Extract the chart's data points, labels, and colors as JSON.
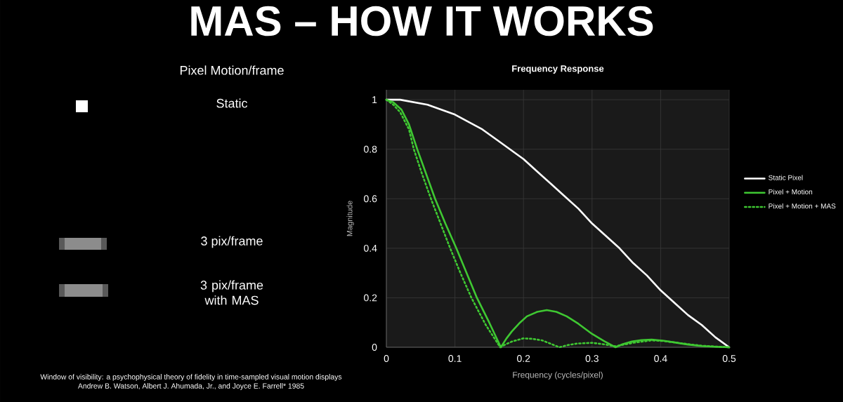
{
  "chart_data": {
    "type": "line",
    "title": "Frequency Response",
    "subtitle": "MAS – HOW IT WORKS",
    "xlabel": "Frequency (cycles/pixel)",
    "ylabel": "Magnitude",
    "xlim": [
      0,
      0.5
    ],
    "ylim": [
      0,
      1.04
    ],
    "xticks": [
      0,
      0.1,
      0.2,
      0.3,
      0.4,
      0.5
    ],
    "yticks": [
      0,
      0.2,
      0.4,
      0.6,
      0.8,
      1
    ],
    "grid": true,
    "legend": "right",
    "marker": "none",
    "annotations": [
      "Pixel Motion/frame",
      "Static",
      "3 pix/frame",
      "3 pix/frame with MAS",
      "Window of visibility: a psychophysical theory of fidelity in time-sampled visual motion displays",
      "Andrew B. Watson, Albert J. Ahumada, Jr., and Joyce E. Farrell* 1985"
    ],
    "series": [
      {
        "name": "Static Pixel",
        "color": "#ffffff",
        "line_style": "solid",
        "x": [
          0,
          0.02,
          0.04,
          0.06,
          0.08,
          0.1,
          0.12,
          0.14,
          0.16,
          0.18,
          0.2,
          0.22,
          0.24,
          0.26,
          0.28,
          0.3,
          0.32,
          0.34,
          0.36,
          0.38,
          0.4,
          0.42,
          0.44,
          0.46,
          0.48,
          0.5
        ],
        "values": [
          1,
          1.0,
          0.99,
          0.98,
          0.96,
          0.94,
          0.91,
          0.88,
          0.84,
          0.8,
          0.76,
          0.71,
          0.66,
          0.61,
          0.56,
          0.5,
          0.45,
          0.4,
          0.34,
          0.29,
          0.23,
          0.18,
          0.13,
          0.09,
          0.04,
          0
        ]
      },
      {
        "name": "Pixel + Motion",
        "color": "#3fc832",
        "line_style": "solid",
        "x": [
          0,
          0.01,
          0.022,
          0.033,
          0.045,
          0.058,
          0.071,
          0.086,
          0.102,
          0.117,
          0.132,
          0.15,
          0.167,
          0.175,
          0.183,
          0.195,
          0.205,
          0.22,
          0.234,
          0.248,
          0.263,
          0.28,
          0.3,
          0.317,
          0.334,
          0.345,
          0.358,
          0.372,
          0.387,
          0.405,
          0.424,
          0.44,
          0.46,
          0.48,
          0.5
        ],
        "values": [
          1,
          0.99,
          0.96,
          0.9,
          0.8,
          0.7,
          0.6,
          0.5,
          0.4,
          0.3,
          0.2,
          0.1,
          0,
          0.035,
          0.064,
          0.1,
          0.125,
          0.143,
          0.15,
          0.143,
          0.125,
          0.095,
          0.054,
          0.026,
          0,
          0.013,
          0.023,
          0.029,
          0.031,
          0.026,
          0.018,
          0.011,
          0.005,
          0.002,
          0
        ]
      },
      {
        "name": "Pixel + Motion + MAS",
        "color": "#3fc832",
        "line_style": "dotted",
        "x": [
          0,
          0.01,
          0.02,
          0.033,
          0.04,
          0.052,
          0.065,
          0.079,
          0.093,
          0.108,
          0.124,
          0.145,
          0.166,
          0.175,
          0.183,
          0.2,
          0.213,
          0.227,
          0.24,
          0.252,
          0.265,
          0.278,
          0.3,
          0.317,
          0.334,
          0.36,
          0.387,
          0.405,
          0.424,
          0.46,
          0.5
        ],
        "values": [
          1,
          0.98,
          0.95,
          0.88,
          0.8,
          0.7,
          0.6,
          0.5,
          0.4,
          0.3,
          0.2,
          0.09,
          0,
          0.013,
          0.023,
          0.036,
          0.034,
          0.028,
          0.014,
          0,
          0.009,
          0.015,
          0.018,
          0.012,
          0.004,
          0.018,
          0.028,
          0.025,
          0.018,
          0.006,
          0
        ]
      }
    ]
  }
}
